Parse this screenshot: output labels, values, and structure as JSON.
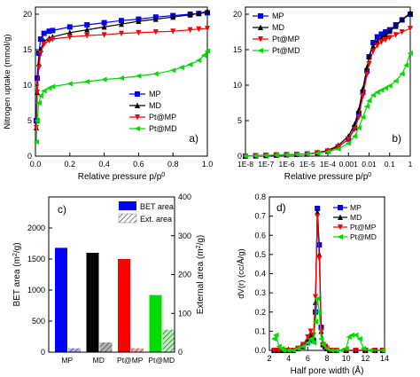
{
  "series_colors": {
    "MP": "#0000ff",
    "MD": "#000000",
    "Pt@MP": "#ff0000",
    "Pt@MD": "#00dd00"
  },
  "chart_data": [
    {
      "id": "a",
      "type": "line",
      "panel_label": "a)",
      "xlabel": "Relative pressure p/p",
      "xlabel_sup": "0",
      "ylabel": "Nitrogen uptake (mmol/g)",
      "xlim": [
        0,
        1.0
      ],
      "ylim": [
        0,
        21
      ],
      "xticks": [
        0.0,
        0.2,
        0.4,
        0.6,
        0.8,
        1.0
      ],
      "xtick_labels": [
        "0.0",
        "0.2",
        "0.4",
        "0.6",
        "0.8",
        "1.0"
      ],
      "yticks": [
        0,
        5,
        10,
        15,
        20
      ],
      "ytick_labels": [
        "0",
        "5",
        "10",
        "15",
        "20"
      ],
      "legend": [
        "MP",
        "MD",
        "Pt@MP",
        "Pt@MD"
      ],
      "legend_position": "bottom-right",
      "series": [
        {
          "name": "MP",
          "x": [
            0.005,
            0.01,
            0.02,
            0.03,
            0.05,
            0.08,
            0.1,
            0.2,
            0.3,
            0.4,
            0.5,
            0.6,
            0.7,
            0.8,
            0.9,
            0.95,
            1.0
          ],
          "y": [
            5,
            11,
            14.5,
            16.5,
            17.3,
            17.6,
            17.7,
            18.2,
            18.5,
            18.8,
            19.1,
            19.3,
            19.6,
            19.8,
            20.0,
            20.1,
            20.2
          ]
        },
        {
          "name": "MD",
          "x": [
            0.005,
            0.01,
            0.02,
            0.03,
            0.05,
            0.08,
            0.1,
            0.2,
            0.3,
            0.4,
            0.5,
            0.6,
            0.7,
            0.8,
            0.9,
            0.95,
            1.0
          ],
          "y": [
            4,
            9,
            13,
            15,
            16.2,
            16.6,
            16.8,
            17.4,
            17.8,
            18.2,
            18.6,
            19.0,
            19.3,
            19.6,
            19.9,
            20.1,
            20.4
          ]
        },
        {
          "name": "Pt@MP",
          "x": [
            0.005,
            0.01,
            0.02,
            0.03,
            0.05,
            0.08,
            0.1,
            0.2,
            0.3,
            0.4,
            0.5,
            0.6,
            0.7,
            0.8,
            0.9,
            0.95,
            1.0
          ],
          "y": [
            4,
            9,
            12.5,
            14.5,
            15.8,
            16.3,
            16.5,
            16.8,
            17.0,
            17.1,
            17.3,
            17.4,
            17.5,
            17.6,
            17.8,
            17.9,
            18.0
          ]
        },
        {
          "name": "Pt@MD",
          "x": [
            0.005,
            0.01,
            0.02,
            0.03,
            0.05,
            0.08,
            0.1,
            0.2,
            0.3,
            0.4,
            0.5,
            0.6,
            0.7,
            0.8,
            0.85,
            0.9,
            0.95,
            0.98,
            1.0
          ],
          "y": [
            2,
            5,
            7.5,
            8.5,
            9.2,
            9.6,
            9.8,
            10.2,
            10.5,
            10.8,
            11.0,
            11.3,
            11.6,
            12.1,
            12.5,
            12.9,
            13.5,
            14.2,
            14.8
          ]
        }
      ]
    },
    {
      "id": "b",
      "type": "line",
      "panel_label": "b)",
      "xlabel": "Relative pressure p/p",
      "xlabel_sup": "0",
      "xscale": "log",
      "xlim_log10": [
        -8,
        0
      ],
      "ylim": [
        0,
        21
      ],
      "xtick_log10": [
        -8,
        -7,
        -6,
        -5,
        -4,
        -3,
        -2,
        -1,
        0
      ],
      "xtick_labels": [
        "1E-8",
        "1E-7",
        "1E-6",
        "1E-5",
        "1E-4",
        "0.001",
        "0.01",
        "0.1",
        "1"
      ],
      "yticks": [
        0,
        5,
        10,
        15,
        20
      ],
      "ytick_labels": [
        "0",
        "5",
        "10",
        "15",
        "20"
      ],
      "legend": [
        "MP",
        "MD",
        "Pt@MP",
        "Pt@MD"
      ],
      "legend_position": "top-left",
      "series": [
        {
          "name": "MP",
          "xlog": [
            -8,
            -7.5,
            -7,
            -6.5,
            -6,
            -5.5,
            -5,
            -4.5,
            -4,
            -3.5,
            -3,
            -2.7,
            -2.5,
            -2.3,
            -2.1,
            -2.0,
            -1.8,
            -1.6,
            -1.4,
            -1.2,
            -1.0,
            -0.7,
            -0.4,
            0
          ],
          "y": [
            0,
            0.05,
            0.1,
            0.15,
            0.2,
            0.25,
            0.3,
            0.45,
            0.7,
            1.3,
            2.4,
            4,
            6,
            9,
            12,
            14,
            16,
            16.8,
            17.2,
            17.5,
            17.8,
            18.5,
            19.2,
            20
          ]
        },
        {
          "name": "MD",
          "xlog": [
            -8,
            -7.5,
            -7,
            -6.5,
            -6,
            -5.5,
            -5,
            -4.5,
            -4,
            -3.5,
            -3,
            -2.7,
            -2.5,
            -2.3,
            -2.1,
            -2.0,
            -1.8,
            -1.6,
            -1.4,
            -1.2,
            -1.0,
            -0.7,
            -0.4,
            0
          ],
          "y": [
            0,
            0.05,
            0.1,
            0.15,
            0.2,
            0.25,
            0.3,
            0.5,
            0.8,
            1.5,
            2.8,
            4.5,
            6.5,
            9.5,
            12.5,
            14,
            15.5,
            16.2,
            16.7,
            17.1,
            17.6,
            18.3,
            19.2,
            20.2
          ]
        },
        {
          "name": "Pt@MP",
          "xlog": [
            -8,
            -7.5,
            -7,
            -6.5,
            -6,
            -5.5,
            -5,
            -4.5,
            -4,
            -3.5,
            -3,
            -2.7,
            -2.5,
            -2.3,
            -2.1,
            -2.0,
            -1.8,
            -1.6,
            -1.4,
            -1.2,
            -1.0,
            -0.7,
            -0.4,
            0
          ],
          "y": [
            0,
            0.05,
            0.1,
            0.15,
            0.2,
            0.25,
            0.3,
            0.45,
            0.7,
            1.3,
            2.4,
            3.8,
            5.5,
            8.5,
            11.5,
            13,
            14.8,
            15.6,
            16.1,
            16.4,
            16.7,
            17.1,
            17.5,
            18
          ]
        },
        {
          "name": "Pt@MD",
          "xlog": [
            -8,
            -7.5,
            -7,
            -6.5,
            -6,
            -5.5,
            -5,
            -4.5,
            -4,
            -3.5,
            -3,
            -2.7,
            -2.5,
            -2.3,
            -2.1,
            -2.0,
            -1.8,
            -1.6,
            -1.4,
            -1.2,
            -1.0,
            -0.7,
            -0.4,
            -0.2,
            0
          ],
          "y": [
            0,
            0.05,
            0.1,
            0.15,
            0.2,
            0.25,
            0.3,
            0.4,
            0.6,
            1.0,
            1.8,
            2.8,
            4,
            5.5,
            7,
            7.8,
            8.6,
            9.0,
            9.3,
            9.6,
            9.9,
            10.6,
            11.6,
            12.8,
            14.5
          ]
        }
      ]
    },
    {
      "id": "c",
      "type": "bar",
      "panel_label": "c)",
      "ylabel": "BET area  (m",
      "ylabel_sup": "2",
      "ylabel_end": "/g)",
      "ylabel_right": "External area (m",
      "ylabel_right_sup": "2",
      "ylabel_right_end": "/g)",
      "categories": [
        "MP",
        "MD",
        "Pt@MP",
        "Pt@MD"
      ],
      "ylim": [
        0,
        2500
      ],
      "ylim_right": [
        0,
        400
      ],
      "yticks": [
        0,
        500,
        1000,
        1500,
        2000
      ],
      "ytick_labels": [
        "0",
        "500",
        "1000",
        "1500",
        "2000"
      ],
      "yticks_right": [
        0,
        100,
        200,
        300,
        400
      ],
      "ytick_right_labels": [
        "0",
        "100",
        "200",
        "300",
        "400"
      ],
      "legend": [
        "BET area",
        "Ext. area"
      ],
      "legend_position": "top-right",
      "series": [
        {
          "name": "BET area",
          "values": [
            1680,
            1600,
            1500,
            920
          ]
        },
        {
          "name": "Ext. area",
          "axis": "right",
          "values": [
            10,
            25,
            10,
            58
          ]
        }
      ]
    },
    {
      "id": "d",
      "type": "line",
      "panel_label": "d)",
      "xlabel": "Half pore width (Å)",
      "ylabel": "dV(r) (cc/Å/g)",
      "xlim": [
        2,
        14
      ],
      "ylim": [
        0,
        0.8
      ],
      "xticks": [
        2,
        4,
        6,
        8,
        10,
        12,
        14
      ],
      "xtick_labels": [
        "2",
        "4",
        "6",
        "8",
        "10",
        "12",
        "14"
      ],
      "yticks": [
        0.0,
        0.1,
        0.2,
        0.3,
        0.4,
        0.5,
        0.6,
        0.7,
        0.8
      ],
      "ytick_labels": [
        "0.0",
        "0.1",
        "0.2",
        "0.3",
        "0.4",
        "0.5",
        "0.6",
        "0.7",
        "0.8"
      ],
      "legend": [
        "MP",
        "MD",
        "Pt@MP",
        "Pt@MD"
      ],
      "legend_position": "top-right",
      "series": [
        {
          "name": "MP",
          "x": [
            2.5,
            3,
            3.5,
            4,
            4.5,
            5,
            5.5,
            6,
            6.3,
            6.6,
            6.8,
            7.0,
            7.2,
            7.4,
            7.6,
            7.8,
            8.0,
            8.3,
            8.6,
            9,
            10,
            11,
            12,
            13,
            13.8
          ],
          "y": [
            0,
            0,
            0,
            0,
            0,
            0.01,
            0.02,
            0.04,
            0.06,
            0.05,
            0.2,
            0.74,
            0.55,
            0.12,
            0.03,
            0.02,
            0.01,
            0,
            0,
            0,
            0,
            0,
            0,
            0,
            0
          ]
        },
        {
          "name": "MD",
          "x": [
            2.5,
            3,
            3.5,
            4,
            4.5,
            5,
            5.5,
            6,
            6.3,
            6.6,
            6.8,
            7.0,
            7.2,
            7.4,
            7.6,
            7.8,
            8.0,
            8.3,
            8.6,
            9,
            10,
            11,
            12,
            13,
            13.8
          ],
          "y": [
            0,
            0,
            0,
            0,
            0,
            0.01,
            0.02,
            0.05,
            0.08,
            0.07,
            0.25,
            0.72,
            0.5,
            0.1,
            0.03,
            0.02,
            0.01,
            0,
            0,
            0,
            0,
            0,
            0,
            0,
            0
          ]
        },
        {
          "name": "Pt@MP",
          "x": [
            2.5,
            3,
            3.5,
            4,
            4.5,
            5,
            5.5,
            6,
            6.3,
            6.6,
            6.8,
            7.0,
            7.2,
            7.4,
            7.6,
            7.8,
            8.0,
            8.3,
            8.6,
            9,
            10,
            11,
            12,
            13,
            13.8
          ],
          "y": [
            0,
            0,
            0,
            0,
            0,
            0.01,
            0.03,
            0.07,
            0.1,
            0.08,
            0.28,
            0.7,
            0.48,
            0.1,
            0.03,
            0.02,
            0.01,
            0,
            0,
            0,
            0,
            0,
            0,
            0,
            0
          ]
        },
        {
          "name": "Pt@MD",
          "x": [
            2.5,
            2.7,
            3.0,
            3.3,
            3.5,
            4,
            4.5,
            5,
            5.5,
            6,
            6.3,
            6.6,
            6.8,
            7.0,
            7.2,
            7.4,
            7.6,
            8.0,
            8.5,
            9,
            9.5,
            10,
            10.3,
            10.6,
            11,
            11.4,
            11.8,
            12.5,
            13.8
          ],
          "y": [
            0.06,
            0.08,
            0.02,
            0.01,
            0,
            0,
            0,
            0.01,
            0.02,
            0.04,
            0.06,
            0.04,
            0.15,
            0.27,
            0.2,
            0.06,
            0.03,
            0.01,
            0,
            0,
            0,
            0.01,
            0.07,
            0.08,
            0.08,
            0.06,
            0.01,
            0,
            0
          ]
        }
      ]
    }
  ]
}
